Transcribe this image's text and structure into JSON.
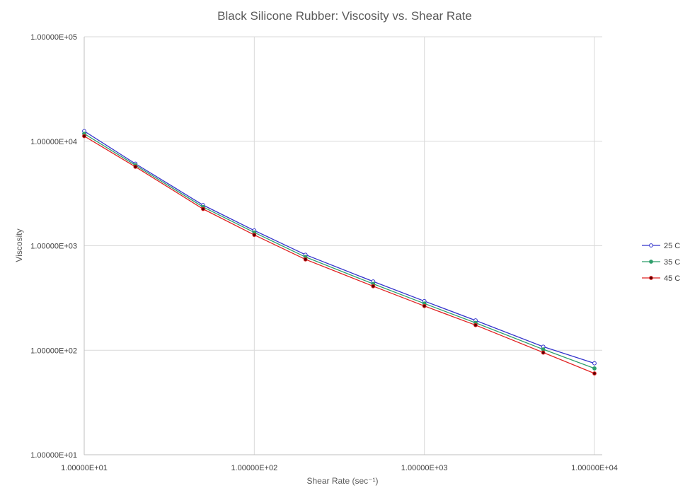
{
  "chart_data": {
    "type": "line",
    "title": "Black Silicone Rubber:  Viscosity vs. Shear Rate",
    "xlabel": "Shear Rate (sec⁻¹)",
    "ylabel": "Viscosity",
    "xscale": "log",
    "yscale": "log",
    "xlim": [
      10,
      10000
    ],
    "ylim": [
      10,
      100000
    ],
    "x_ticks": [
      "1.00000E+01",
      "1.00000E+02",
      "1.00000E+03",
      "1.00000E+04"
    ],
    "y_ticks": [
      "1.00000E+01",
      "1.00000E+02",
      "1.00000E+03",
      "1.00000E+04",
      "1.00000E+05"
    ],
    "grid": true,
    "legend_position": "right",
    "x": [
      10,
      20,
      50,
      100,
      200,
      500,
      1000,
      2000,
      5000,
      10000
    ],
    "series": [
      {
        "name": "25 C",
        "color": "#3333CC",
        "marker_fill": "#ffffff",
        "values": [
          12500,
          6100,
          2450,
          1400,
          820,
          455,
          295,
          193,
          108,
          75
        ]
      },
      {
        "name": "35 C",
        "color": "#2E9E6B",
        "marker_fill": "#2E9E6B",
        "values": [
          11800,
          5900,
          2350,
          1340,
          780,
          432,
          280,
          183,
          102,
          67
        ]
      },
      {
        "name": "45 C",
        "color": "#E02020",
        "marker_fill": "#5A0000",
        "values": [
          11200,
          5700,
          2250,
          1270,
          740,
          410,
          265,
          174,
          95,
          60
        ]
      }
    ]
  }
}
